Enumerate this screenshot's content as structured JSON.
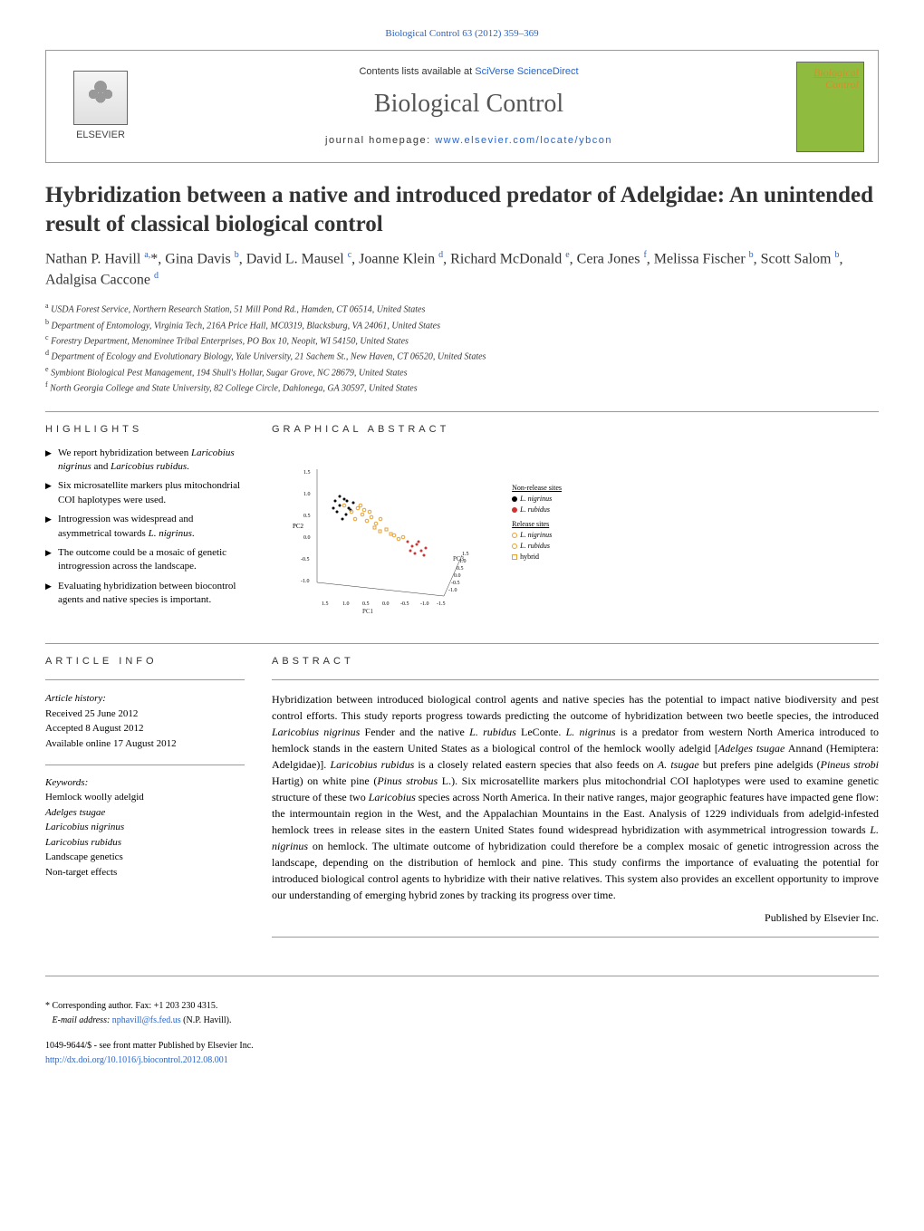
{
  "journal_header": {
    "citation": "Biological Control 63 (2012) 359–369",
    "contents_text": "Contents lists available at",
    "contents_link": "SciVerse ScienceDirect",
    "journal_name": "Biological Control",
    "homepage_label": "journal homepage:",
    "homepage_url": "www.elsevier.com/locate/ybcon",
    "publisher_logo_text": "ELSEVIER",
    "cover_title_top": "Biological",
    "cover_title_bottom": "Control"
  },
  "article": {
    "title": "Hybridization between a native and introduced predator of Adelgidae: An unintended result of classical biological control",
    "authors_html": "Nathan P. Havill <sup>a,</sup><span class=\"asterisk\">*</span>, Gina Davis <sup>b</sup>, David L. Mausel <sup>c</sup>, Joanne Klein <sup>d</sup>, Richard McDonald <sup>e</sup>, Cera Jones <sup>f</sup>, Melissa Fischer <sup>b</sup>, Scott Salom <sup>b</sup>, Adalgisa Caccone <sup>d</sup>",
    "affiliations": [
      {
        "sup": "a",
        "text": "USDA Forest Service, Northern Research Station, 51 Mill Pond Rd., Hamden, CT 06514, United States"
      },
      {
        "sup": "b",
        "text": "Department of Entomology, Virginia Tech, 216A Price Hall, MC0319, Blacksburg, VA 24061, United States"
      },
      {
        "sup": "c",
        "text": "Forestry Department, Menominee Tribal Enterprises, PO Box 10, Neopit, WI 54150, United States"
      },
      {
        "sup": "d",
        "text": "Department of Ecology and Evolutionary Biology, Yale University, 21 Sachem St., New Haven, CT 06520, United States"
      },
      {
        "sup": "e",
        "text": "Symbiont Biological Pest Management, 194 Shull's Hollar, Sugar Grove, NC 28679, United States"
      },
      {
        "sup": "f",
        "text": "North Georgia College and State University, 82 College Circle, Dahlonega, GA 30597, United States"
      }
    ]
  },
  "highlights": {
    "header": "HIGHLIGHTS",
    "items": [
      "We report hybridization between <span class=\"italic-species\">Laricobius nigrinus</span> and <span class=\"italic-species\">Laricobius rubidus</span>.",
      "Six microsatellite markers plus mitochondrial COI haplotypes were used.",
      "Introgression was widespread and asymmetrical towards <span class=\"italic-species\">L. nigrinus</span>.",
      "The outcome could be a mosaic of genetic introgression across the landscape.",
      "Evaluating hybridization between biocontrol agents and native species is important."
    ]
  },
  "graphical_abstract": {
    "header": "GRAPHICAL ABSTRACT",
    "axes": {
      "pc1_label": "PC1",
      "pc2_label": "PC2",
      "pc3_label": "PC3",
      "pc1_ticks": [
        "1.5",
        "1.0",
        "0.5",
        "0.0",
        "-0.5",
        "-1.0",
        "-1.5"
      ],
      "pc2_ticks": [
        "1.5",
        "1.0",
        "0.5",
        "0.0",
        "-0.5",
        "-1.0"
      ],
      "pc3_ticks": [
        "1.5",
        "1.0",
        "0.5",
        "0.0",
        "-0.5",
        "-1.0"
      ]
    },
    "legend": {
      "non_release_title": "Non-release sites",
      "release_title": "Release sites",
      "items_non": [
        {
          "label": "L. nigrinus",
          "color": "#000000",
          "shape": "circle-filled"
        },
        {
          "label": "L. rubidus",
          "color": "#cc3333",
          "shape": "circle-filled"
        }
      ],
      "items_rel": [
        {
          "label": "L. nigrinus",
          "color": "#e8a030",
          "shape": "circle-open"
        },
        {
          "label": "L. rubidus",
          "color": "#e8a030",
          "shape": "circle-open"
        },
        {
          "label": "hybrid",
          "color": "#e8a030",
          "shape": "square-open"
        }
      ]
    },
    "scatter_cluster_colors": {
      "black": "#000000",
      "red": "#cc3333",
      "orange": "#e8a030"
    }
  },
  "article_info": {
    "header": "ARTICLE INFO",
    "history_label": "Article history:",
    "received": "Received 25 June 2012",
    "accepted": "Accepted 8 August 2012",
    "available": "Available online 17 August 2012",
    "keywords_label": "Keywords:",
    "keywords": [
      "Hemlock woolly adelgid",
      "Adelges tsugae",
      "Laricobius nigrinus",
      "Laricobius rubidus",
      "Landscape genetics",
      "Non-target effects"
    ]
  },
  "abstract": {
    "header": "ABSTRACT",
    "text": "Hybridization between introduced biological control agents and native species has the potential to impact native biodiversity and pest control efforts. This study reports progress towards predicting the outcome of hybridization between two beetle species, the introduced <span class=\"italic-species\">Laricobius nigrinus</span> Fender and the native <span class=\"italic-species\">L. rubidus</span> LeConte. <span class=\"italic-species\">L. nigrinus</span> is a predator from western North America introduced to hemlock stands in the eastern United States as a biological control of the hemlock woolly adelgid [<span class=\"italic-species\">Adelges tsugae</span> Annand (Hemiptera: Adelgidae)]. <span class=\"italic-species\">Laricobius rubidus</span> is a closely related eastern species that also feeds on <span class=\"italic-species\">A. tsugae</span> but prefers pine adelgids (<span class=\"italic-species\">Pineus strobi</span> Hartig) on white pine (<span class=\"italic-species\">Pinus strobus</span> L.). Six microsatellite markers plus mitochondrial COI haplotypes were used to examine genetic structure of these two <span class=\"italic-species\">Laricobius</span> species across North America. In their native ranges, major geographic features have impacted gene flow: the intermountain region in the West, and the Appalachian Mountains in the East. Analysis of 1229 individuals from adelgid-infested hemlock trees in release sites in the eastern United States found widespread hybridization with asymmetrical introgression towards <span class=\"italic-species\">L. nigrinus</span> on hemlock. The ultimate outcome of hybridization could therefore be a complex mosaic of genetic introgression across the landscape, depending on the distribution of hemlock and pine. This study confirms the importance of evaluating the potential for introduced biological control agents to hybridize with their native relatives. This system also provides an excellent opportunity to improve our understanding of emerging hybrid zones by tracking its progress over time.",
    "publisher": "Published by Elsevier Inc."
  },
  "footer": {
    "corresponding_marker": "*",
    "corresponding_text": "Corresponding author. Fax: +1 203 230 4315.",
    "email_label": "E-mail address:",
    "email": "nphavill@fs.fed.us",
    "email_name": "(N.P. Havill).",
    "copyright": "1049-9644/$ - see front matter Published by Elsevier Inc.",
    "doi": "http://dx.doi.org/10.1016/j.biocontrol.2012.08.001"
  }
}
